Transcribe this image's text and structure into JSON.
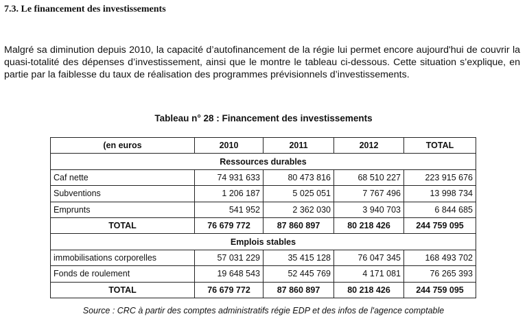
{
  "section_title": "7.3. Le financement des investissements",
  "paragraph": "Malgré sa diminution depuis 2010, la capacité d’autofinancement de la régie lui permet encore aujourd'hui de couvrir la quasi-totalité des dépenses d’investissement, ainsi que le montre le tableau ci-dessous. Cette situation s’explique, en partie par la faiblesse du taux de réalisation des programmes prévisionnels d’investissements.",
  "table": {
    "caption": "Tableau n° 28 : Financement des investissements",
    "headers": [
      "(en euros",
      "2010",
      "2011",
      "2012",
      "TOTAL"
    ],
    "section1": "Ressources durables",
    "rows1": [
      [
        "Caf nette",
        "74 931 633",
        "80 473 816",
        "68 510 227",
        "223 915 676"
      ],
      [
        "Subventions",
        "1 206 187",
        "5 025 051",
        "7 767 496",
        "13 998 734"
      ],
      [
        "Emprunts",
        "541 952",
        "2 362 030",
        "3 940 703",
        "6 844 685"
      ]
    ],
    "total1": [
      "TOTAL",
      "76 679 772",
      "87 860 897",
      "80 218 426",
      "244 759 095"
    ],
    "section2": "Emplois stables",
    "rows2": [
      [
        "immobilisations corporelles",
        "57 031 229",
        "35 415 128",
        "76 047 345",
        "168 493 702"
      ],
      [
        "Fonds de roulement",
        "19 648 543",
        "52 445 769",
        "4 171 081",
        "76 265 393"
      ]
    ],
    "total2": [
      "TOTAL",
      "76 679 772",
      "87 860 897",
      "80 218 426",
      "244 759 095"
    ],
    "source": "Source : CRC à partir des comptes administratifs régie EDP et des infos de l'agence comptable"
  }
}
